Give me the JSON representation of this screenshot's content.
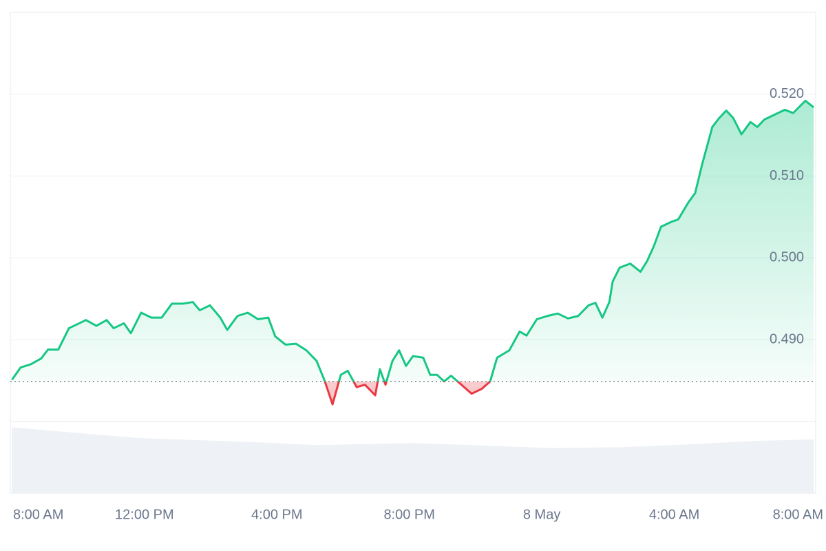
{
  "chart_data": {
    "type": "line",
    "x": [
      0,
      0.26,
      0.57,
      0.88,
      1.09,
      1.4,
      1.72,
      2.03,
      2.23,
      2.55,
      2.86,
      3.07,
      3.38,
      3.59,
      3.9,
      4.21,
      4.52,
      4.83,
      5.15,
      5.46,
      5.67,
      5.98,
      6.29,
      6.5,
      6.81,
      7.12,
      7.43,
      7.74,
      7.95,
      8.26,
      8.58,
      8.89,
      9.2,
      9.45,
      9.68,
      9.93,
      10.14,
      10.41,
      10.66,
      10.97,
      11.11,
      11.28,
      11.49,
      11.69,
      11.9,
      12.11,
      12.42,
      12.63,
      12.84,
      13.05,
      13.26,
      13.57,
      13.88,
      14.19,
      14.44,
      14.65,
      15.02,
      15.33,
      15.54,
      15.85,
      16.17,
      16.48,
      16.79,
      17.1,
      17.41,
      17.62,
      17.83,
      18.04,
      18.14,
      18.35,
      18.67,
      18.98,
      19.18,
      19.39,
      19.6,
      19.91,
      20.12,
      20.43,
      20.63,
      20.84,
      21.15,
      21.36,
      21.57,
      21.78,
      22.03,
      22.3,
      22.51,
      22.72,
      23.03,
      23.34,
      23.59,
      23.96,
      24.21
    ],
    "values": [
      0.4851,
      0.4866,
      0.487,
      0.4877,
      0.4888,
      0.4888,
      0.4914,
      0.492,
      0.4924,
      0.4917,
      0.4924,
      0.4914,
      0.492,
      0.4908,
      0.4933,
      0.4927,
      0.4927,
      0.4944,
      0.4944,
      0.4946,
      0.4936,
      0.4942,
      0.4927,
      0.4912,
      0.4929,
      0.4933,
      0.4925,
      0.4927,
      0.4904,
      0.4894,
      0.4895,
      0.4887,
      0.4874,
      0.4849,
      0.4821,
      0.4857,
      0.4862,
      0.4842,
      0.4845,
      0.4832,
      0.4864,
      0.4845,
      0.4874,
      0.4887,
      0.4868,
      0.488,
      0.4878,
      0.4857,
      0.4857,
      0.4849,
      0.4856,
      0.4845,
      0.4834,
      0.484,
      0.4849,
      0.4878,
      0.4887,
      0.491,
      0.4905,
      0.4925,
      0.4929,
      0.4932,
      0.4926,
      0.4929,
      0.4942,
      0.4945,
      0.4927,
      0.4946,
      0.4971,
      0.4988,
      0.4993,
      0.4983,
      0.4996,
      0.5015,
      0.5038,
      0.5044,
      0.5047,
      0.5068,
      0.5079,
      0.5114,
      0.516,
      0.5171,
      0.518,
      0.5171,
      0.5151,
      0.5166,
      0.516,
      0.5169,
      0.5175,
      0.5181,
      0.5177,
      0.5192,
      0.5184
    ],
    "baseline": 0.4849,
    "up_color": "#16c784",
    "down_color": "#ea3943",
    "xlim": [
      -0.05,
      24.25
    ],
    "xticks": [
      {
        "value": 0,
        "label": "8:00 AM"
      },
      {
        "value": 4,
        "label": "12:00 PM"
      },
      {
        "value": 8,
        "label": "4:00 PM"
      },
      {
        "value": 12,
        "label": "8:00 PM"
      },
      {
        "value": 16,
        "label": "8 May"
      },
      {
        "value": 20,
        "label": "4:00 AM"
      },
      {
        "value": 24,
        "label": "8:00 AM"
      }
    ],
    "ylim": [
      0.48,
      0.53
    ],
    "yticks": [
      {
        "value": 0.49,
        "label": "0.490"
      },
      {
        "value": 0.5,
        "label": "0.500"
      },
      {
        "value": 0.51,
        "label": "0.510"
      },
      {
        "value": 0.52,
        "label": "0.520"
      }
    ],
    "grid": true,
    "volume": {
      "x": [
        0,
        1.72,
        3.79,
        7.95,
        9.2,
        12.11,
        16.27,
        18.35,
        20.43,
        22.51,
        24.21
      ],
      "values": [
        92,
        85,
        77,
        70,
        67,
        70,
        63,
        64,
        68,
        73,
        75
      ],
      "lim": [
        0,
        100
      ],
      "color": "#eef1f5"
    }
  }
}
